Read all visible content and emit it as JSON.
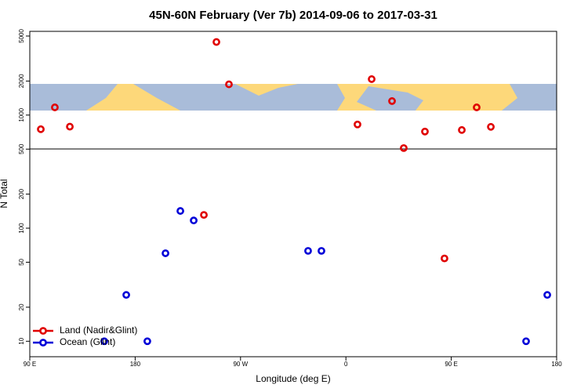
{
  "chart_data": {
    "type": "scatter",
    "title": "45N-60N February (Ver 7b)   2014-09-06 to 2017-03-31",
    "xlabel": "Longitude (deg E)",
    "ylabel": "N Total",
    "xlim": [
      90,
      540
    ],
    "xticks": [
      {
        "value": 90,
        "label": "90 E"
      },
      180,
      {
        "value": 270,
        "label": "90 W"
      },
      {
        "value": 360,
        "label": "0"
      },
      {
        "value": 450,
        "label": "90 E"
      },
      {
        "value": 540,
        "label": "180"
      }
    ],
    "ylim": [
      7.3,
      5500
    ],
    "ylog": true,
    "yticks": [
      10,
      20,
      50,
      100,
      200,
      500,
      1000,
      2000,
      5000
    ],
    "legend": "bottom-left",
    "series": [
      {
        "name": "Land (Nadir&Glint)",
        "color": "#e00000",
        "x": [
          99.4,
          111.4,
          124.2,
          249.4,
          260.1,
          238.7,
          369.9,
          382,
          399.4,
          409.4,
          427.5,
          444.2,
          459,
          471.7,
          483.8
        ],
        "values": [
          750,
          1170,
          790,
          4430,
          1870,
          131,
          826,
          2080,
          1330,
          511,
          715,
          54,
          738,
          1170,
          787
        ]
      },
      {
        "name": "Ocean (Glint)",
        "color": "#0000d8",
        "x": [
          153.6,
          172.4,
          190.4,
          205.9,
          218.6,
          230,
          327.7,
          339.1,
          513.9,
          532
        ],
        "values": [
          10,
          25.7,
          10,
          60,
          142,
          117,
          63,
          63,
          10,
          25.7
        ]
      }
    ]
  }
}
